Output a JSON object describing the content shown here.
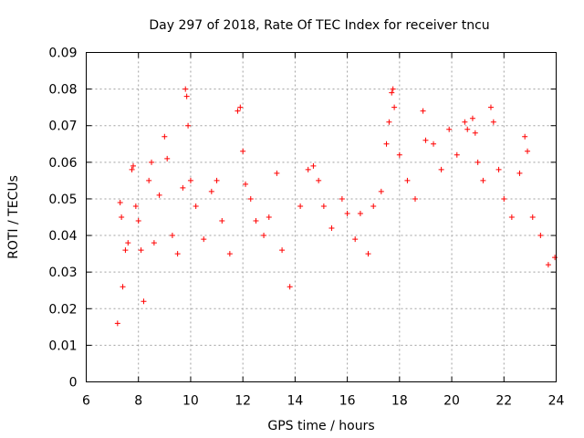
{
  "chart_data": {
    "type": "scatter",
    "title": "Day 297 of 2018, Rate Of TEC Index for receiver tncu",
    "xlabel": "GPS time / hours",
    "ylabel": "ROTI / TECUs",
    "xlim": [
      6,
      24
    ],
    "ylim": [
      0,
      0.09
    ],
    "xticks": [
      6,
      8,
      10,
      12,
      14,
      16,
      18,
      20,
      22,
      24
    ],
    "yticks": [
      0,
      0.01,
      0.02,
      0.03,
      0.04,
      0.05,
      0.06,
      0.07,
      0.08,
      0.09
    ],
    "xtick_labels": [
      "6",
      "8",
      "10",
      "12",
      "14",
      "16",
      "18",
      "20",
      "22",
      "24"
    ],
    "ytick_labels": [
      "0",
      "0.01",
      "0.02",
      "0.03",
      "0.04",
      "0.05",
      "0.06",
      "0.07",
      "0.08",
      "0.09"
    ],
    "grid": true,
    "marker": "+",
    "series": [
      {
        "name": "ROTI",
        "color": "#ff0000",
        "points": [
          [
            7.2,
            0.016
          ],
          [
            7.3,
            0.049
          ],
          [
            7.35,
            0.045
          ],
          [
            7.4,
            0.026
          ],
          [
            7.5,
            0.036
          ],
          [
            7.6,
            0.038
          ],
          [
            7.75,
            0.058
          ],
          [
            7.8,
            0.059
          ],
          [
            7.9,
            0.048
          ],
          [
            8.0,
            0.044
          ],
          [
            8.1,
            0.036
          ],
          [
            8.2,
            0.022
          ],
          [
            8.4,
            0.055
          ],
          [
            8.5,
            0.06
          ],
          [
            8.6,
            0.038
          ],
          [
            8.8,
            0.051
          ],
          [
            9.0,
            0.067
          ],
          [
            9.1,
            0.061
          ],
          [
            9.3,
            0.04
          ],
          [
            9.5,
            0.035
          ],
          [
            9.7,
            0.053
          ],
          [
            9.8,
            0.08
          ],
          [
            9.85,
            0.078
          ],
          [
            9.9,
            0.07
          ],
          [
            10.0,
            0.055
          ],
          [
            10.2,
            0.048
          ],
          [
            10.5,
            0.039
          ],
          [
            10.8,
            0.052
          ],
          [
            11.0,
            0.055
          ],
          [
            11.2,
            0.044
          ],
          [
            11.5,
            0.035
          ],
          [
            11.8,
            0.074
          ],
          [
            11.9,
            0.075
          ],
          [
            12.0,
            0.063
          ],
          [
            12.1,
            0.054
          ],
          [
            12.3,
            0.05
          ],
          [
            12.5,
            0.044
          ],
          [
            12.8,
            0.04
          ],
          [
            13.0,
            0.045
          ],
          [
            13.3,
            0.057
          ],
          [
            13.5,
            0.036
          ],
          [
            13.8,
            0.026
          ],
          [
            14.2,
            0.048
          ],
          [
            14.5,
            0.058
          ],
          [
            14.7,
            0.059
          ],
          [
            14.9,
            0.055
          ],
          [
            15.1,
            0.048
          ],
          [
            15.4,
            0.042
          ],
          [
            15.8,
            0.05
          ],
          [
            16.0,
            0.046
          ],
          [
            16.3,
            0.039
          ],
          [
            16.5,
            0.046
          ],
          [
            16.8,
            0.035
          ],
          [
            17.0,
            0.048
          ],
          [
            17.3,
            0.052
          ],
          [
            17.5,
            0.065
          ],
          [
            17.6,
            0.071
          ],
          [
            17.7,
            0.079
          ],
          [
            17.75,
            0.08
          ],
          [
            17.8,
            0.075
          ],
          [
            18.0,
            0.062
          ],
          [
            18.3,
            0.055
          ],
          [
            18.6,
            0.05
          ],
          [
            18.9,
            0.074
          ],
          [
            19.0,
            0.066
          ],
          [
            19.3,
            0.065
          ],
          [
            19.6,
            0.058
          ],
          [
            19.9,
            0.069
          ],
          [
            20.2,
            0.062
          ],
          [
            20.5,
            0.071
          ],
          [
            20.6,
            0.069
          ],
          [
            20.8,
            0.072
          ],
          [
            20.9,
            0.068
          ],
          [
            21.0,
            0.06
          ],
          [
            21.2,
            0.055
          ],
          [
            21.5,
            0.075
          ],
          [
            21.6,
            0.071
          ],
          [
            21.8,
            0.058
          ],
          [
            22.0,
            0.05
          ],
          [
            22.3,
            0.045
          ],
          [
            22.6,
            0.057
          ],
          [
            22.8,
            0.067
          ],
          [
            22.9,
            0.063
          ],
          [
            23.1,
            0.045
          ],
          [
            23.4,
            0.04
          ],
          [
            23.7,
            0.032
          ],
          [
            23.95,
            0.034
          ]
        ]
      }
    ]
  }
}
